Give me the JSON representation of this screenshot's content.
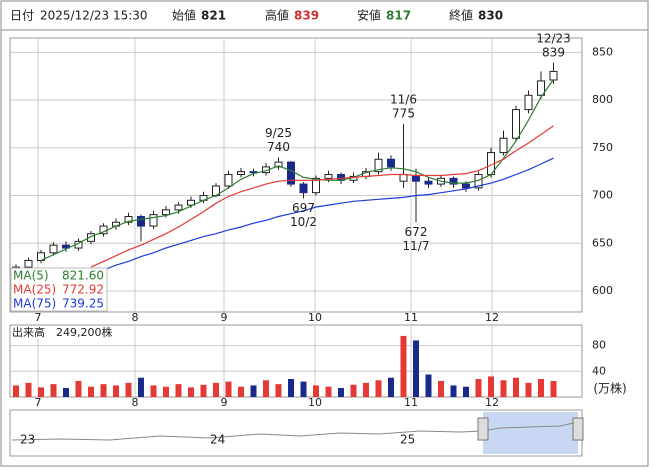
{
  "header": {
    "date_label": "日付",
    "date": "2025/12/23 15:30",
    "open_label": "始値",
    "open": "821",
    "high_label": "高値",
    "high": "839",
    "low_label": "安値",
    "low": "817",
    "close_label": "終値",
    "close": "830"
  },
  "chart_data": {
    "type": "candlestick",
    "xlim": [
      -0.48,
      45.28
    ],
    "xticks": [
      {
        "value": 1.76,
        "label": "7"
      },
      {
        "value": 9.52,
        "label": "8"
      },
      {
        "value": 16.64,
        "label": "9"
      },
      {
        "value": 23.92,
        "label": "10"
      },
      {
        "value": 31.6,
        "label": "11"
      },
      {
        "value": 38.08,
        "label": "12"
      }
    ],
    "ylim": [
      578,
      865
    ],
    "yticks": [
      600,
      650,
      700,
      750,
      800,
      850
    ],
    "grid": true,
    "up_color": "#ffffff",
    "down_color": "#1a2a8c",
    "open": [
      620,
      625,
      632,
      640,
      648,
      645,
      652,
      660,
      668,
      672,
      678,
      668,
      680,
      685,
      690,
      695,
      700,
      710,
      722,
      725,
      724,
      730,
      735,
      712,
      703,
      718,
      722,
      716,
      720,
      725,
      738,
      715,
      720,
      715,
      712,
      718,
      712,
      708,
      722,
      745,
      760,
      790,
      805,
      821
    ],
    "high": [
      628,
      635,
      643,
      651,
      652,
      655,
      663,
      671,
      676,
      682,
      680,
      684,
      689,
      693,
      699,
      704,
      713,
      726,
      729,
      728,
      734,
      740,
      736,
      714,
      721,
      726,
      724,
      724,
      729,
      745,
      742,
      775,
      728,
      719,
      721,
      720,
      715,
      725,
      750,
      768,
      794,
      810,
      830,
      839
    ],
    "low": [
      617,
      622,
      629,
      637,
      641,
      642,
      649,
      657,
      664,
      669,
      652,
      665,
      677,
      681,
      687,
      692,
      698,
      707,
      719,
      720,
      721,
      727,
      709,
      697,
      700,
      714,
      712,
      713,
      717,
      722,
      726,
      708,
      672,
      708,
      709,
      708,
      704,
      705,
      719,
      742,
      757,
      786,
      801,
      817
    ],
    "close": [
      625,
      632,
      640,
      648,
      645,
      652,
      660,
      668,
      672,
      678,
      668,
      680,
      685,
      690,
      695,
      700,
      710,
      722,
      725,
      724,
      730,
      735,
      712,
      703,
      718,
      722,
      716,
      720,
      725,
      738,
      730,
      722,
      715,
      712,
      718,
      712,
      708,
      722,
      745,
      760,
      790,
      805,
      820,
      830
    ],
    "series": [
      {
        "name": "MA(5)",
        "color": "#2e7d32",
        "legend_value": "821.60",
        "values": [
          null,
          null,
          632,
          638,
          644,
          650,
          657,
          662,
          668,
          673,
          675,
          677,
          679,
          683,
          689,
          695,
          700,
          708,
          717,
          723,
          726,
          731,
          726,
          719,
          717,
          716,
          716,
          719,
          724,
          727,
          729,
          728,
          725,
          719,
          715,
          713,
          713,
          716,
          722,
          739,
          757,
          779,
          803,
          821.6
        ]
      },
      {
        "name": "MA(25)",
        "color": "#e53935",
        "legend_value": "772.92",
        "values": [
          null,
          null,
          null,
          null,
          null,
          null,
          625,
          631,
          637,
          643,
          648,
          654,
          660,
          667,
          675,
          683,
          692,
          699,
          704,
          708,
          712,
          715,
          716,
          716,
          716,
          717,
          718,
          719,
          720,
          721,
          722,
          722,
          721,
          721,
          721,
          722,
          723,
          726,
          732,
          738,
          747,
          755,
          764,
          772.92
        ]
      },
      {
        "name": "MA(75)",
        "color": "#1e3adb",
        "legend_value": "739.25",
        "values": [
          null,
          null,
          null,
          null,
          null,
          null,
          null,
          622,
          627,
          631,
          636,
          640,
          645,
          649,
          653,
          657,
          660,
          664,
          667,
          671,
          674,
          678,
          681,
          684,
          688,
          690,
          692,
          694,
          695,
          696,
          697,
          698,
          700,
          701,
          703,
          705,
          707,
          710,
          713,
          717,
          722,
          727,
          733,
          739.25
        ]
      }
    ],
    "annotations": [
      {
        "date": "9/25",
        "value": 740
      },
      {
        "date": "10/2",
        "value": 697
      },
      {
        "date": "11/6",
        "value": 775
      },
      {
        "date": "11/7",
        "value": 672
      },
      {
        "date": "12/23",
        "value": 839
      }
    ],
    "volume": {
      "title": "出来高",
      "last": "249,200株",
      "unit": "(万株)",
      "ylim": [
        0,
        112
      ],
      "yticks": [
        40,
        80
      ],
      "up_color": "#e53935",
      "down_color": "#1a2a8c",
      "values": [
        18,
        22,
        15,
        20,
        14,
        25,
        16,
        20,
        18,
        22,
        30,
        18,
        16,
        20,
        15,
        19,
        22,
        24,
        16,
        18,
        26,
        20,
        28,
        24,
        18,
        16,
        14,
        19,
        22,
        26,
        30,
        95,
        88,
        35,
        25,
        18,
        16,
        28,
        32,
        26,
        30,
        22,
        28,
        24.92
      ]
    },
    "navigator": {
      "labels": [
        "23",
        "24",
        "25"
      ]
    }
  }
}
